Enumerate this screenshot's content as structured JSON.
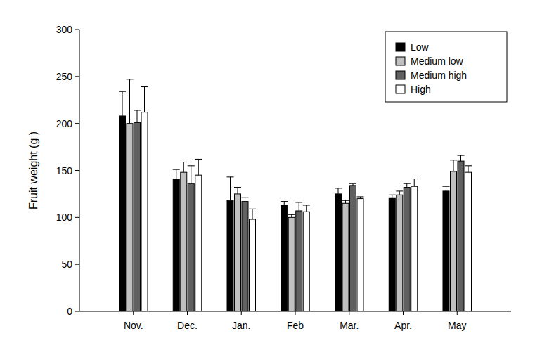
{
  "chart_data": {
    "type": "bar",
    "y_label": "Fruit weight (g )",
    "categories": [
      "Nov.",
      "Dec.",
      "Jan.",
      "Feb",
      "Mar.",
      "Apr.",
      "May"
    ],
    "series": [
      {
        "name": "Low",
        "color": "#000000",
        "values": [
          208,
          141,
          118,
          113,
          125,
          121,
          128
        ],
        "errors": [
          26,
          10,
          25,
          4,
          6,
          3,
          5
        ]
      },
      {
        "name": "Medium low",
        "color": "#c0c0c0",
        "values": [
          200,
          148,
          125,
          100,
          115,
          124,
          149
        ],
        "errors": [
          47,
          11,
          7,
          3,
          3,
          4,
          12
        ]
      },
      {
        "name": "Medium high",
        "color": "#606060",
        "values": [
          201,
          136,
          117,
          107,
          134,
          132,
          160
        ],
        "errors": [
          13,
          19,
          4,
          9,
          2,
          4,
          6
        ]
      },
      {
        "name": "High",
        "color": "#ffffff",
        "values": [
          212,
          145,
          98,
          106,
          120,
          133,
          148
        ],
        "errors": [
          27,
          17,
          11,
          7,
          2,
          8,
          7
        ]
      }
    ],
    "ylim": [
      0,
      300
    ],
    "yticks": [
      0,
      50,
      100,
      150,
      200,
      250,
      300
    ],
    "grid": false,
    "legend": "top-right"
  }
}
